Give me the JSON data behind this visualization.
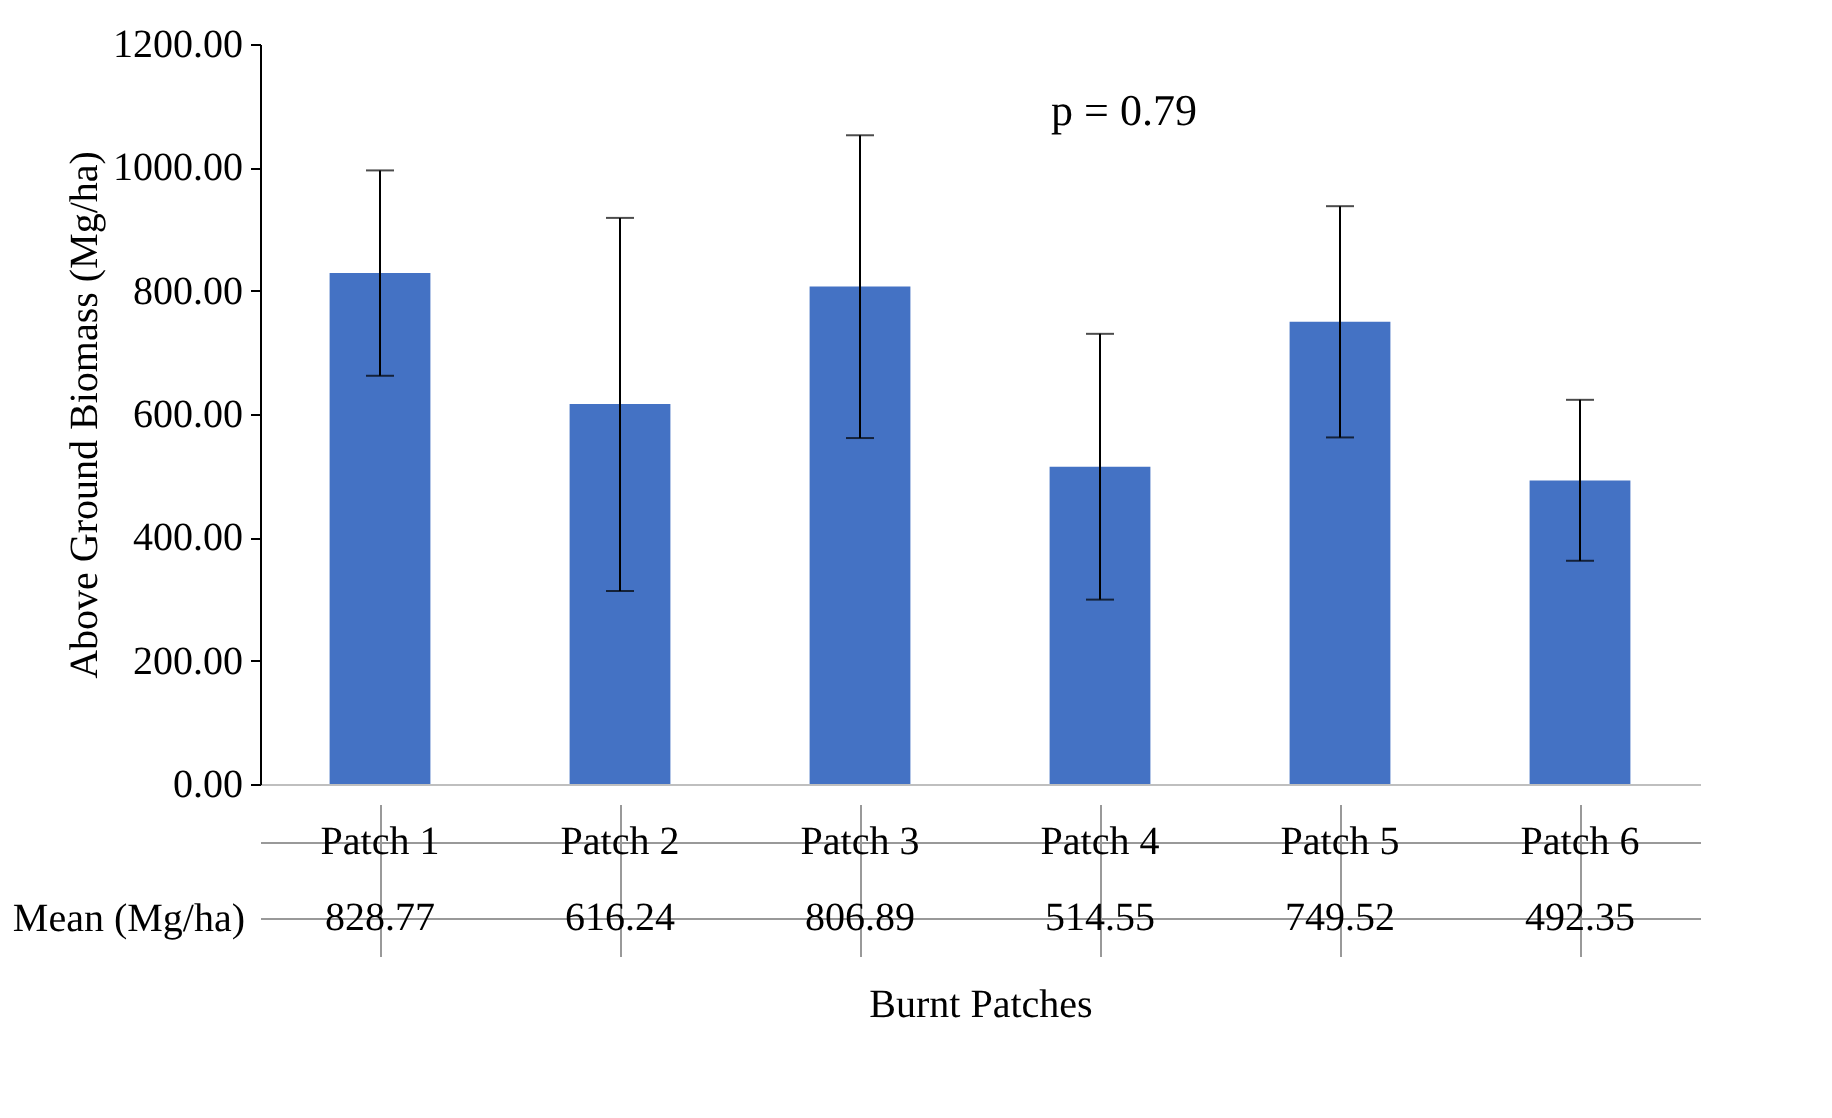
{
  "chart_data": {
    "type": "bar",
    "xlabel": "Burnt Patches",
    "ylabel": "Above Ground Biomass (Mg/ha)",
    "categories": [
      "Patch 1",
      "Patch 2",
      "Patch 3",
      "Patch 4",
      "Patch 5",
      "Patch 6"
    ],
    "values": [
      828.77,
      616.24,
      806.89,
      514.55,
      749.52,
      492.35
    ],
    "errors": [
      [
        662,
        995
      ],
      [
        313,
        918
      ],
      [
        561,
        1052
      ],
      [
        299,
        730
      ],
      [
        562,
        937
      ],
      [
        362,
        623
      ]
    ],
    "color": "#4472c4",
    "data_labels": true,
    "grid": false,
    "ylim": [
      0,
      1200
    ],
    "yticks": [
      {
        "value": 0,
        "label": "0.00"
      },
      {
        "value": 200,
        "label": "200.00"
      },
      {
        "value": 400,
        "label": "400.00"
      },
      {
        "value": 600,
        "label": "600.00"
      },
      {
        "value": 800,
        "label": "800.00"
      },
      {
        "value": 1000,
        "label": "1000.00"
      },
      {
        "value": 1200,
        "label": "1200.00"
      }
    ],
    "annotations": [
      "p = 0.79",
      "Mean (Mg/ha)"
    ]
  }
}
